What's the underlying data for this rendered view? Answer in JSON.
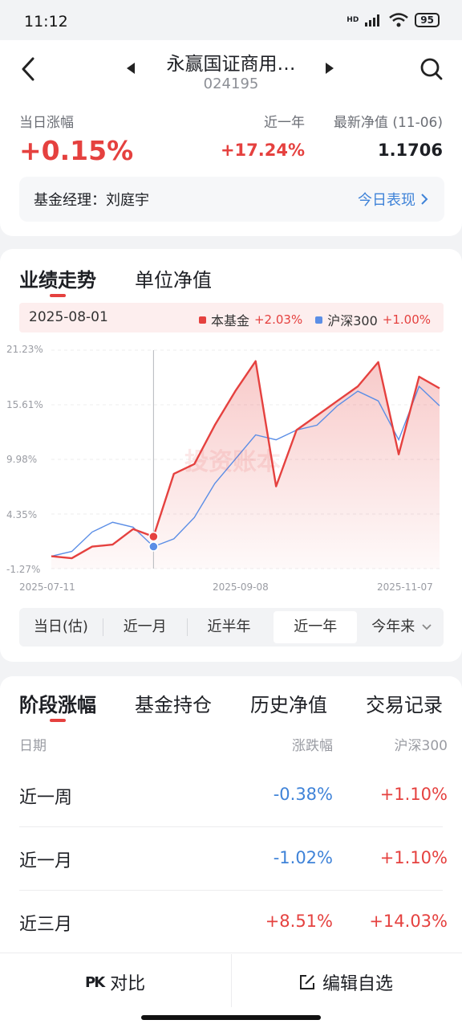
{
  "status_bar": {
    "time": "11:12",
    "battery": "95",
    "hd_label": "HD"
  },
  "header": {
    "fund_name": "永赢国证商用…",
    "fund_code": "024195"
  },
  "summary": {
    "daily_change_label": "当日涨幅",
    "daily_change": "+0.15%",
    "year_label": "近一年",
    "year_change": "+17.24%",
    "nav_label": "最新净值 (11-06)",
    "nav_value": "1.1706",
    "manager_label": "基金经理：刘庭宇",
    "today_link": "今日表现"
  },
  "chart_tabs": [
    "业绩走势",
    "单位净值"
  ],
  "legend": {
    "date": "2025-08-01",
    "fund_name": "本基金",
    "fund_value": "+2.03%",
    "index_name": "沪深300",
    "index_value": "+1.00%"
  },
  "colors": {
    "fund": "#e5413f",
    "index": "#5b8ee6",
    "accent_blue": "#3f83d8"
  },
  "watermark": "投资账本",
  "chart_data": {
    "type": "line",
    "ylim": [
      -1.27,
      21.23
    ],
    "yticks": [
      "21.23%",
      "15.61%",
      "9.98%",
      "4.35%",
      "-1.27%"
    ],
    "xticks": [
      "2025-07-11",
      "2025-09-08",
      "2025-11-07"
    ],
    "x": [
      "2025-07-11",
      "2025-07-16",
      "2025-07-21",
      "2025-07-25",
      "2025-07-30",
      "2025-08-01",
      "2025-08-06",
      "2025-08-12",
      "2025-08-19",
      "2025-08-26",
      "2025-09-02",
      "2025-09-08",
      "2025-09-15",
      "2025-09-22",
      "2025-09-30",
      "2025-10-10",
      "2025-10-17",
      "2025-10-24",
      "2025-10-31",
      "2025-11-07"
    ],
    "series": [
      {
        "name": "本基金",
        "values": [
          0.0,
          -0.2,
          1.0,
          1.2,
          2.8,
          2.03,
          8.5,
          9.5,
          13.5,
          17.0,
          20.1,
          7.2,
          13.0,
          14.5,
          16.0,
          17.5,
          20.0,
          10.5,
          18.5,
          17.3
        ]
      },
      {
        "name": "沪深300",
        "values": [
          0.0,
          0.5,
          2.5,
          3.5,
          3.0,
          1.0,
          1.8,
          4.0,
          7.5,
          10.0,
          12.5,
          12.0,
          13.0,
          13.5,
          15.5,
          17.0,
          16.0,
          12.0,
          17.5,
          15.5
        ]
      }
    ]
  },
  "ranges": [
    "当日(估)",
    "近一月",
    "近半年",
    "近一年",
    "今年来"
  ],
  "active_range": "近一年",
  "perf_tabs": [
    "阶段涨幅",
    "基金持仓",
    "历史净值",
    "交易记录"
  ],
  "perf_table": {
    "headers": [
      "日期",
      "涨跌幅",
      "沪深300"
    ],
    "rows": [
      {
        "period": "近一周",
        "change": "-0.38%",
        "index": "+1.10%"
      },
      {
        "period": "近一月",
        "change": "-1.02%",
        "index": "+1.10%"
      },
      {
        "period": "近三月",
        "change": "+8.51%",
        "index": "+14.03%"
      }
    ]
  },
  "bottom": {
    "compare": "对比",
    "compare_icon": "PK",
    "edit": "编辑自选"
  }
}
